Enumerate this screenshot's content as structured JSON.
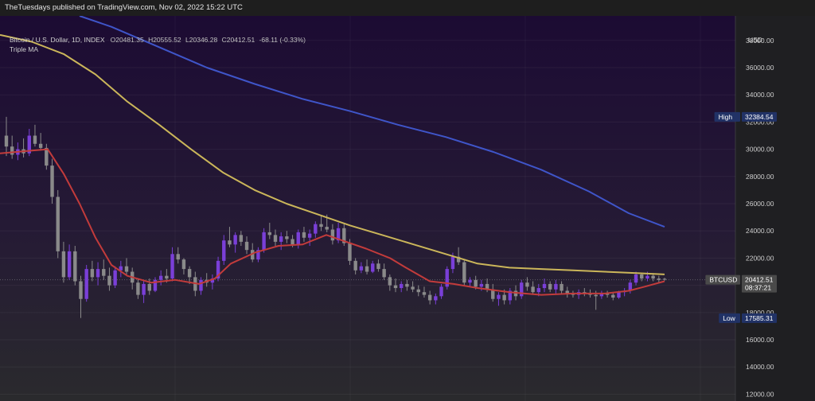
{
  "publisher_line": "TheTuesdays published on TradingView.com, Nov 02, 2022 15:22 UTC",
  "legend": {
    "symbol": "Bitcoin / U.S. Dollar, 1D, INDEX",
    "open": "O20481.35",
    "high": "H20555.52",
    "low": "L20346.28",
    "close": "C20412.51",
    "change": "-68.11 (-0.33%)",
    "indicator": "Triple MA"
  },
  "axis": {
    "currency": "USD"
  },
  "markers": {
    "high_label": "High",
    "high_value": "32384.54",
    "last_label": "BTCUSD",
    "last_value": "20412.51",
    "countdown": "08:37:21",
    "low_label": "Low",
    "low_value": "17585.31"
  },
  "colors": {
    "bg_top": "#1c0b33",
    "bg_bottom": "#2a2a2d",
    "candle_up": "#7a3fd8",
    "candle_down": "#8a8a8a",
    "ma_fast": "#c23b3b",
    "ma_mid": "#cbb65a",
    "ma_slow": "#3f55c9",
    "high_badge": "#213266",
    "last_badge": "#4a4a4a",
    "low_badge": "#213266"
  },
  "chart_data": {
    "type": "candlestick",
    "title": "Bitcoin / U.S. Dollar, 1D, INDEX",
    "ylabel": "USD",
    "ylim": [
      11500,
      39800
    ],
    "y_ticks": [
      12000,
      14000,
      16000,
      18000,
      20000,
      22000,
      24000,
      26000,
      28000,
      30000,
      32000,
      34000,
      36000,
      38000
    ],
    "y_tick_labels": [
      "12000.00",
      "14000.00",
      "16000.00",
      "18000.00",
      "20000.00",
      "22000.00",
      "24000.00",
      "26000.00",
      "28000.00",
      "30000.00",
      "32000.00",
      "34000.00",
      "36000.00",
      "38000.00"
    ],
    "candles": [
      [
        31000,
        32384,
        29500,
        30200
      ],
      [
        30200,
        31000,
        29300,
        29600
      ],
      [
        29600,
        30500,
        29200,
        30000
      ],
      [
        30000,
        30800,
        29400,
        29700
      ],
      [
        29700,
        31500,
        29500,
        31000
      ],
      [
        31000,
        31800,
        30200,
        30400
      ],
      [
        30400,
        31200,
        29900,
        30100
      ],
      [
        30100,
        30400,
        28500,
        28800
      ],
      [
        28800,
        29300,
        26000,
        26500
      ],
      [
        26500,
        27000,
        22000,
        22500
      ],
      [
        22500,
        23200,
        20200,
        20600
      ],
      [
        20600,
        23000,
        20400,
        22500
      ],
      [
        22500,
        22900,
        20000,
        20300
      ],
      [
        20300,
        20700,
        17600,
        19000
      ],
      [
        19000,
        21500,
        18800,
        21200
      ],
      [
        21200,
        21800,
        20300,
        20600
      ],
      [
        20600,
        21700,
        20000,
        21200
      ],
      [
        21200,
        21900,
        20400,
        20700
      ],
      [
        20700,
        21300,
        19600,
        20000
      ],
      [
        20000,
        21400,
        19800,
        21100
      ],
      [
        21100,
        21800,
        20600,
        21400
      ],
      [
        21400,
        22000,
        20800,
        21000
      ],
      [
        21000,
        21300,
        19700,
        20200
      ],
      [
        20200,
        20500,
        19000,
        19300
      ],
      [
        19300,
        20400,
        18700,
        20100
      ],
      [
        20100,
        20500,
        19300,
        19600
      ],
      [
        19600,
        20600,
        19500,
        20400
      ],
      [
        20400,
        21100,
        20000,
        20700
      ],
      [
        20700,
        21200,
        20200,
        20500
      ],
      [
        20500,
        22800,
        20300,
        22300
      ],
      [
        22300,
        22800,
        21600,
        21900
      ],
      [
        21900,
        22000,
        20800,
        21200
      ],
      [
        21200,
        21400,
        20100,
        20600
      ],
      [
        20600,
        21000,
        19200,
        19600
      ],
      [
        19600,
        20600,
        19300,
        20400
      ],
      [
        20400,
        20900,
        19900,
        20200
      ],
      [
        20200,
        20800,
        19700,
        20500
      ],
      [
        20500,
        22100,
        20300,
        21800
      ],
      [
        21800,
        23700,
        21500,
        23300
      ],
      [
        23300,
        24300,
        22800,
        23000
      ],
      [
        23000,
        23900,
        22400,
        23700
      ],
      [
        23700,
        24000,
        22900,
        23200
      ],
      [
        23200,
        23600,
        22300,
        22600
      ],
      [
        22600,
        23100,
        21700,
        21900
      ],
      [
        21900,
        22800,
        21700,
        22600
      ],
      [
        22600,
        24200,
        22400,
        23900
      ],
      [
        23900,
        24600,
        23400,
        23700
      ],
      [
        23700,
        24100,
        22900,
        23200
      ],
      [
        23200,
        23900,
        22600,
        23600
      ],
      [
        23600,
        24000,
        23100,
        23400
      ],
      [
        23400,
        23700,
        22800,
        23000
      ],
      [
        23000,
        24100,
        22700,
        23900
      ],
      [
        23900,
        24300,
        23200,
        23500
      ],
      [
        23500,
        24100,
        22900,
        23800
      ],
      [
        23800,
        24700,
        23500,
        24500
      ],
      [
        24500,
        25100,
        24000,
        24300
      ],
      [
        24300,
        25200,
        23900,
        24100
      ],
      [
        24100,
        24500,
        23000,
        23300
      ],
      [
        23300,
        24600,
        23100,
        24200
      ],
      [
        24200,
        24500,
        22900,
        23100
      ],
      [
        23100,
        23400,
        21500,
        21800
      ],
      [
        21800,
        22000,
        20800,
        21100
      ],
      [
        21100,
        21700,
        20900,
        21400
      ],
      [
        21400,
        21900,
        20800,
        21000
      ],
      [
        21000,
        21800,
        20900,
        21600
      ],
      [
        21600,
        21900,
        21000,
        21200
      ],
      [
        21200,
        21600,
        20400,
        20600
      ],
      [
        20600,
        20800,
        19600,
        20000
      ],
      [
        20000,
        20500,
        19500,
        19800
      ],
      [
        19800,
        20300,
        19500,
        20100
      ],
      [
        20100,
        20400,
        19600,
        19900
      ],
      [
        19900,
        20300,
        19500,
        19700
      ],
      [
        19700,
        20000,
        19200,
        19500
      ],
      [
        19500,
        19900,
        19100,
        19300
      ],
      [
        19300,
        19600,
        18600,
        18900
      ],
      [
        18900,
        19400,
        18600,
        19200
      ],
      [
        19200,
        20100,
        19000,
        19900
      ],
      [
        19900,
        21400,
        19700,
        21200
      ],
      [
        21200,
        22400,
        20900,
        22100
      ],
      [
        22100,
        22800,
        21500,
        21700
      ],
      [
        21700,
        21900,
        20000,
        20200
      ],
      [
        20200,
        20600,
        19900,
        20400
      ],
      [
        20400,
        20700,
        19700,
        19900
      ],
      [
        19900,
        20400,
        19600,
        20100
      ],
      [
        20100,
        20500,
        19500,
        19700
      ],
      [
        19700,
        20100,
        18800,
        19000
      ],
      [
        19000,
        19500,
        18500,
        19300
      ],
      [
        19300,
        19700,
        18600,
        18900
      ],
      [
        18900,
        19800,
        18600,
        19600
      ],
      [
        19600,
        20000,
        18900,
        19200
      ],
      [
        19200,
        20400,
        19000,
        20200
      ],
      [
        20200,
        20600,
        19600,
        19900
      ],
      [
        19900,
        20300,
        19300,
        19500
      ],
      [
        19500,
        20100,
        19200,
        19800
      ],
      [
        19800,
        20500,
        19500,
        20100
      ],
      [
        20100,
        20300,
        19500,
        19700
      ],
      [
        19700,
        20400,
        19400,
        20100
      ],
      [
        20100,
        20300,
        19400,
        19600
      ],
      [
        19600,
        19900,
        19100,
        19400
      ],
      [
        19400,
        19600,
        19100,
        19300
      ],
      [
        19300,
        19700,
        19000,
        19500
      ],
      [
        19500,
        19800,
        19200,
        19400
      ],
      [
        19400,
        19700,
        19100,
        19300
      ],
      [
        19300,
        19600,
        18200,
        19200
      ],
      [
        19200,
        19600,
        19000,
        19400
      ],
      [
        19400,
        19600,
        19100,
        19300
      ],
      [
        19300,
        19500,
        18900,
        19100
      ],
      [
        19100,
        19600,
        19000,
        19500
      ],
      [
        19500,
        19800,
        19200,
        19600
      ],
      [
        19600,
        20400,
        19400,
        20200
      ],
      [
        20200,
        21000,
        20000,
        20800
      ],
      [
        20800,
        20900,
        20300,
        20500
      ],
      [
        20500,
        21000,
        20300,
        20700
      ],
      [
        20700,
        20900,
        20300,
        20500
      ],
      [
        20500,
        20700,
        20200,
        20400
      ],
      [
        20481,
        20556,
        20346,
        20413
      ]
    ],
    "series": [
      {
        "name": "",
        "values": [
          [
            0,
            29700
          ],
          [
            40,
            29900
          ],
          [
            60,
            30000
          ],
          [
            80,
            28200
          ],
          [
            100,
            26000
          ],
          [
            120,
            23500
          ],
          [
            140,
            21500
          ],
          [
            160,
            20700
          ],
          [
            190,
            20200
          ],
          [
            220,
            20400
          ],
          [
            250,
            20100
          ],
          [
            270,
            20500
          ],
          [
            290,
            21600
          ],
          [
            320,
            22400
          ],
          [
            350,
            22900
          ],
          [
            380,
            23000
          ],
          [
            410,
            23700
          ],
          [
            430,
            23300
          ],
          [
            460,
            22700
          ],
          [
            490,
            22000
          ],
          [
            510,
            21300
          ],
          [
            540,
            20300
          ],
          [
            570,
            20100
          ],
          [
            600,
            19800
          ],
          [
            640,
            19500
          ],
          [
            680,
            19300
          ],
          [
            720,
            19400
          ],
          [
            760,
            19400
          ],
          [
            790,
            19600
          ],
          [
            810,
            19900
          ],
          [
            835,
            20300
          ]
        ]
      },
      {
        "name": "",
        "values": [
          [
            0,
            38400
          ],
          [
            40,
            37900
          ],
          [
            80,
            37000
          ],
          [
            120,
            35500
          ],
          [
            160,
            33500
          ],
          [
            200,
            31800
          ],
          [
            240,
            30000
          ],
          [
            280,
            28300
          ],
          [
            320,
            27000
          ],
          [
            360,
            26000
          ],
          [
            400,
            25200
          ],
          [
            440,
            24400
          ],
          [
            480,
            23700
          ],
          [
            520,
            23000
          ],
          [
            560,
            22300
          ],
          [
            600,
            21600
          ],
          [
            640,
            21300
          ],
          [
            680,
            21200
          ],
          [
            720,
            21100
          ],
          [
            760,
            21000
          ],
          [
            800,
            20900
          ],
          [
            835,
            20800
          ]
        ]
      },
      {
        "name": "",
        "values": [
          [
            100,
            39800
          ],
          [
            140,
            39000
          ],
          [
            200,
            37500
          ],
          [
            260,
            36000
          ],
          [
            320,
            34800
          ],
          [
            380,
            33700
          ],
          [
            440,
            32800
          ],
          [
            500,
            31800
          ],
          [
            560,
            30900
          ],
          [
            620,
            29800
          ],
          [
            680,
            28500
          ],
          [
            740,
            26900
          ],
          [
            790,
            25300
          ],
          [
            835,
            24300
          ]
        ]
      }
    ]
  }
}
